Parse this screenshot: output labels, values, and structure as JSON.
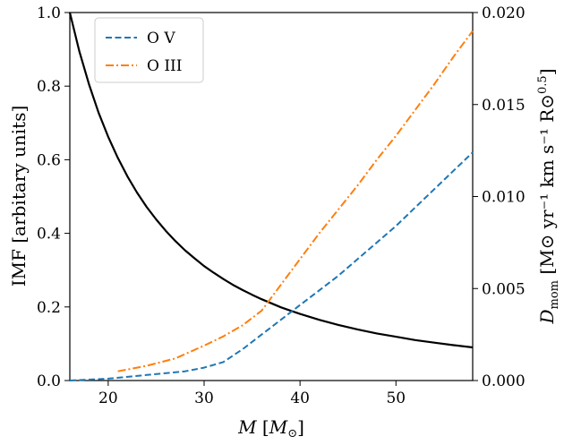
{
  "chart_data": {
    "type": "line",
    "x": {
      "label_italic": "M",
      "label_unit_open": " [",
      "label_unit_italic": "M",
      "label_unit_sub": "⊙",
      "label_unit_close": "]",
      "lim": [
        16,
        58
      ],
      "ticks": [
        20,
        30,
        40,
        50
      ],
      "tick_labels": [
        "20",
        "30",
        "40",
        "50"
      ]
    },
    "y_left": {
      "label": "IMF [arbitary units]",
      "lim": [
        0,
        1.0
      ],
      "ticks": [
        0,
        0.2,
        0.4,
        0.6,
        0.8,
        1.0
      ],
      "tick_labels": [
        "0.0",
        "0.2",
        "0.4",
        "0.6",
        "0.8",
        "1.0"
      ]
    },
    "y_right": {
      "label_main": "D",
      "label_sub": "mom",
      "label_unit": " [M⊙ yr⁻¹ km s⁻¹ R⊙",
      "label_sup": "0.5",
      "label_close": "]",
      "lim": [
        0,
        0.02
      ],
      "ticks": [
        0,
        0.005,
        0.01,
        0.015,
        0.02
      ],
      "tick_labels": [
        "0.000",
        "0.005",
        "0.010",
        "0.015",
        "0.020"
      ]
    },
    "legend_position": "top-left",
    "series": [
      {
        "name": "",
        "axis": "left",
        "color": "#000000",
        "style": "solid",
        "x": [
          16,
          17,
          18,
          19,
          20,
          21,
          22,
          23,
          24,
          25,
          26,
          27,
          28,
          29,
          30,
          31,
          32,
          33,
          34,
          35,
          36,
          37,
          38,
          39,
          40,
          42,
          44,
          46,
          48,
          50,
          52,
          54,
          56,
          58
        ],
        "y": [
          1.0,
          0.894,
          0.805,
          0.728,
          0.662,
          0.605,
          0.555,
          0.511,
          0.472,
          0.438,
          0.407,
          0.379,
          0.354,
          0.332,
          0.311,
          0.293,
          0.276,
          0.26,
          0.246,
          0.233,
          0.221,
          0.21,
          0.199,
          0.19,
          0.181,
          0.165,
          0.151,
          0.139,
          0.128,
          0.119,
          0.11,
          0.103,
          0.096,
          0.09
        ]
      },
      {
        "name": "O V",
        "axis": "right",
        "color": "#1f77b4",
        "style": "dashed",
        "x": [
          16,
          20,
          24,
          28,
          30,
          32,
          34,
          36,
          38,
          40,
          42,
          44,
          46,
          48,
          50,
          52,
          54,
          56,
          58
        ],
        "y": [
          0.0,
          0.0001,
          0.0003,
          0.0005,
          0.0007,
          0.001,
          0.0017,
          0.0025,
          0.0033,
          0.0041,
          0.0049,
          0.0057,
          0.0066,
          0.0075,
          0.0084,
          0.0094,
          0.0104,
          0.0114,
          0.0124
        ]
      },
      {
        "name": "O III",
        "axis": "right",
        "color": "#ff7f0e",
        "style": "dashdot",
        "x": [
          21,
          24,
          27,
          30,
          32,
          34,
          36,
          38,
          40,
          42,
          44,
          46,
          48,
          50,
          52,
          54,
          56,
          58
        ],
        "y": [
          0.0005,
          0.0008,
          0.0012,
          0.0019,
          0.0024,
          0.003,
          0.0038,
          0.0052,
          0.0066,
          0.008,
          0.0093,
          0.0106,
          0.012,
          0.0133,
          0.0147,
          0.0161,
          0.0176,
          0.019
        ]
      }
    ]
  }
}
